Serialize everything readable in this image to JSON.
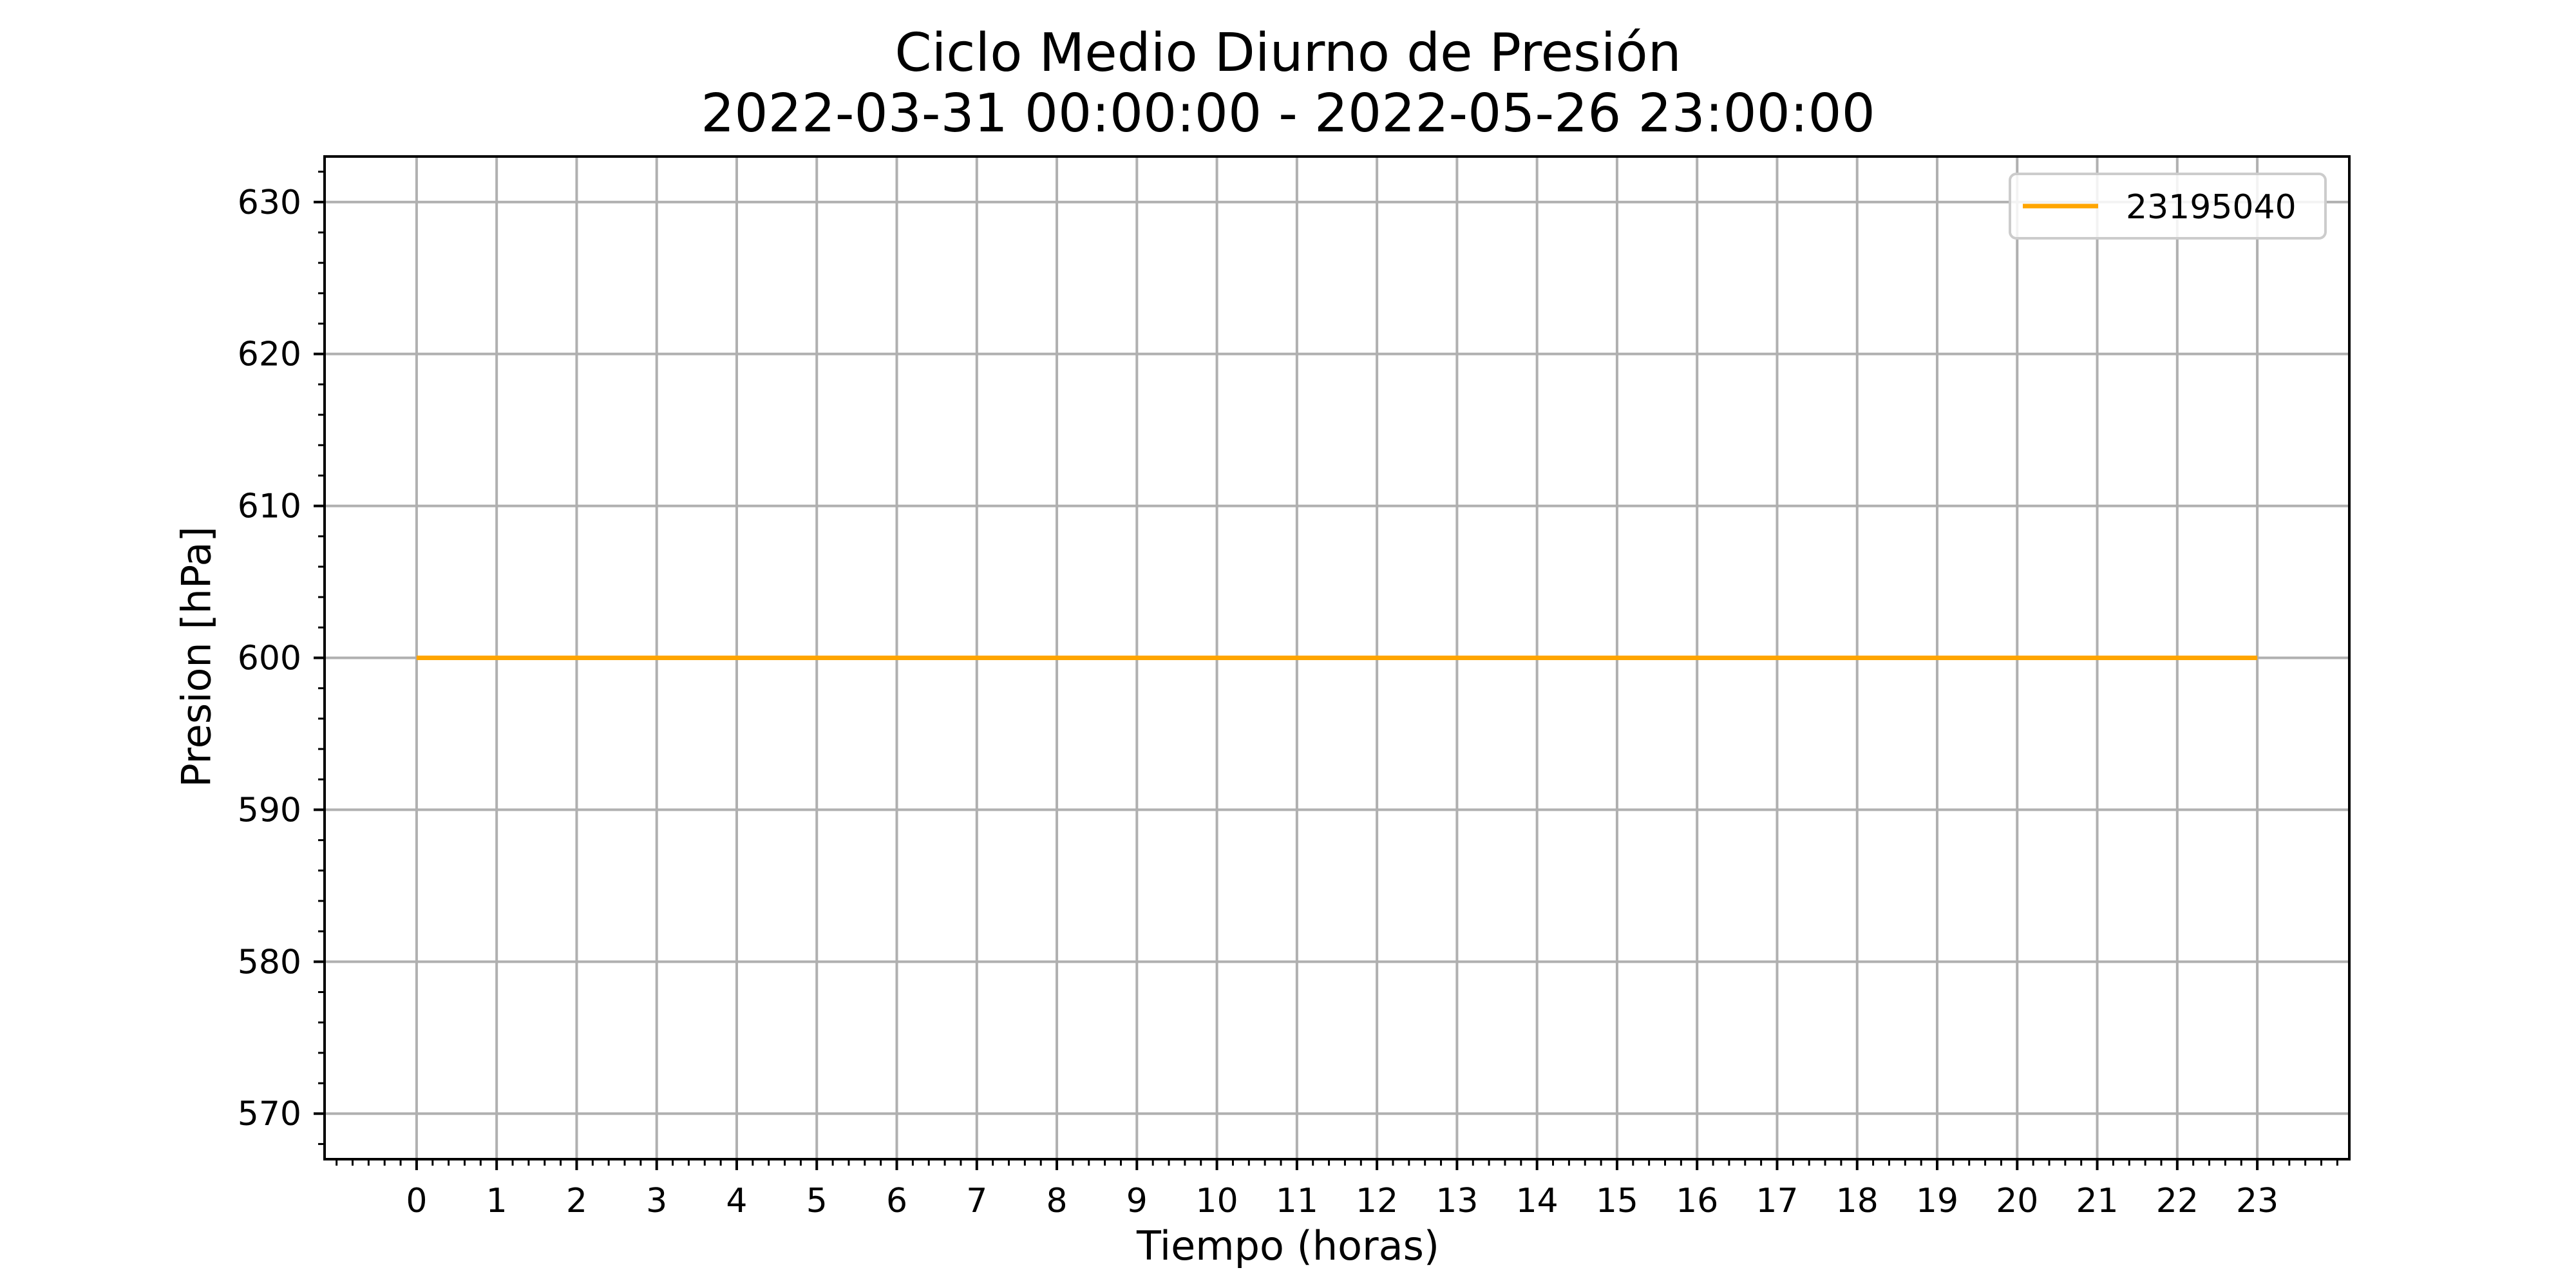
{
  "chart_data": {
    "type": "line",
    "title": "Ciclo Medio Diurno de Presión",
    "subtitle": "2022-03-31 00:00:00 - 2022-05-26 23:00:00",
    "xlabel": "Tiempo (horas)",
    "ylabel": "Presion [hPa]",
    "x": [
      0,
      1,
      2,
      3,
      4,
      5,
      6,
      7,
      8,
      9,
      10,
      11,
      12,
      13,
      14,
      15,
      16,
      17,
      18,
      19,
      20,
      21,
      22,
      23
    ],
    "series": [
      {
        "name": "23195040",
        "color": "#ffa500",
        "values": [
          600,
          600,
          600,
          600,
          600,
          600,
          600,
          600,
          600,
          600,
          600,
          600,
          600,
          600,
          600,
          600,
          600,
          600,
          600,
          600,
          600,
          600,
          600,
          600
        ]
      }
    ],
    "xlim": [
      -1.15,
      24.15
    ],
    "ylim": [
      567,
      633
    ],
    "xticks": [
      0,
      1,
      2,
      3,
      4,
      5,
      6,
      7,
      8,
      9,
      10,
      11,
      12,
      13,
      14,
      15,
      16,
      17,
      18,
      19,
      20,
      21,
      22,
      23
    ],
    "yticks": [
      570,
      580,
      590,
      600,
      610,
      620,
      630
    ],
    "grid": true,
    "legend_position": "top-right"
  }
}
